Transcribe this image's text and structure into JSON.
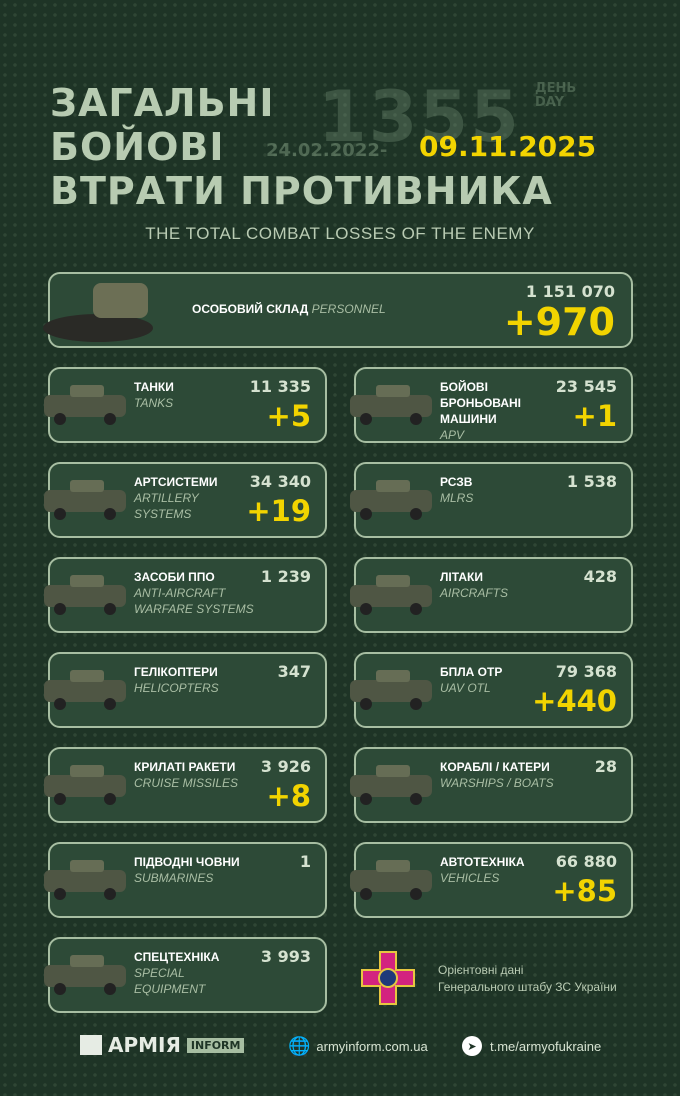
{
  "header": {
    "line1": "ЗАГАЛЬНІ",
    "line2": "БОЙОВІ",
    "line3": "ВТРАТИ ПРОТИВНИКА",
    "day_number": "1355",
    "day_ua": "ДЕНЬ",
    "day_en": "DAY",
    "start_date": "24.02.2022-",
    "end_date": "09.11.2025",
    "subtitle": "THE TOTAL COMBAT LOSSES OF THE ENEMY"
  },
  "personnel": {
    "ua": "ОСОБОВИЙ СКЛАД",
    "en": "PERSONNEL",
    "total": "1 151 070",
    "increase": "+970"
  },
  "cards": [
    {
      "ua": "ТАНКИ",
      "en": "TANKS",
      "total": "11 335",
      "increase": "+5"
    },
    {
      "ua": "БОЙОВІ БРОНЬОВАНІ МАШИНИ",
      "en": "APV",
      "total": "23 545",
      "increase": "+1"
    },
    {
      "ua": "АРТСИСТЕМИ",
      "en": "ARTILLERY SYSTEMS",
      "total": "34 340",
      "increase": "+19"
    },
    {
      "ua": "РСЗВ",
      "en": "MLRS",
      "total": "1 538",
      "increase": ""
    },
    {
      "ua": "ЗАСОБИ ППО",
      "en": "ANTI-AIRCRAFT WARFARE SYSTEMS",
      "total": "1 239",
      "increase": ""
    },
    {
      "ua": "ЛІТАКИ",
      "en": "AIRCRAFTS",
      "total": "428",
      "increase": ""
    },
    {
      "ua": "ГЕЛІКОПТЕРИ",
      "en": "HELICOPTERS",
      "total": "347",
      "increase": ""
    },
    {
      "ua": "БПЛА ОТР",
      "en": "UAV OTL",
      "total": "79 368",
      "increase": "+440"
    },
    {
      "ua": "КРИЛАТІ РАКЕТИ",
      "en": "CRUISE MISSILES",
      "total": "3 926",
      "increase": "+8"
    },
    {
      "ua": "КОРАБЛІ / КАТЕРИ",
      "en": "WARSHIPS / BOATS",
      "total": "28",
      "increase": ""
    },
    {
      "ua": "ПІДВОДНІ ЧОВНИ",
      "en": "SUBMARINES",
      "total": "1",
      "increase": ""
    },
    {
      "ua": "АВТОТЕХНІКА",
      "en": "VEHICLES",
      "total": "66 880",
      "increase": "+85"
    },
    {
      "ua": "СПЕЦТЕХНІКА",
      "en": "SPECIAL EQUIPMENT",
      "total": "3 993",
      "increase": ""
    }
  ],
  "source": {
    "line1": "Орієнтовні дані",
    "line2": "Генерального штабу ЗС України"
  },
  "footer": {
    "logo": "АРМІЯ",
    "logo_badge": "INFORM",
    "website": "armyinform.com.ua",
    "telegram": "t.me/armyofukraine"
  },
  "colors": {
    "background": "#1e3426",
    "card": "#2d4a37",
    "accent": "#f2d400"
  }
}
